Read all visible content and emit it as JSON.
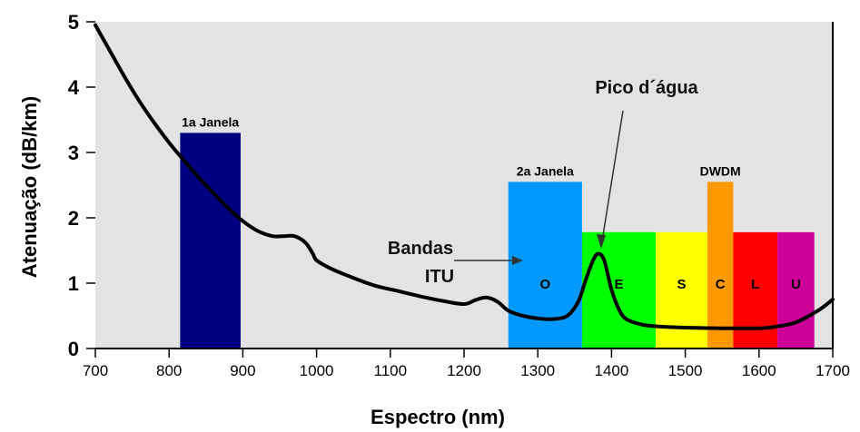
{
  "chart_data": {
    "type": "line",
    "xlabel": "Espectro (nm)",
    "ylabel": "Atenuação (dB/km)",
    "xlim": [
      700,
      1700
    ],
    "ylim": [
      0,
      5
    ],
    "x_ticks": [
      "700",
      "800",
      "900",
      "1000",
      "1100",
      "1200",
      "1300",
      "1400",
      "1500",
      "1600",
      "1700"
    ],
    "y_ticks": [
      "0",
      "1",
      "2",
      "3",
      "4",
      "5"
    ],
    "grid": false,
    "series": [
      {
        "color": "#000000",
        "x": [
          700,
          720,
          740,
          760,
          780,
          800,
          820,
          840,
          860,
          880,
          900,
          920,
          940,
          955,
          970,
          985,
          995,
          1000,
          1020,
          1050,
          1080,
          1110,
          1140,
          1170,
          1200,
          1215,
          1230,
          1245,
          1260,
          1280,
          1300,
          1320,
          1340,
          1355,
          1365,
          1375,
          1382,
          1390,
          1400,
          1410,
          1420,
          1440,
          1460,
          1500,
          1550,
          1600,
          1620,
          1650,
          1680,
          1700
        ],
        "y": [
          4.95,
          4.55,
          4.15,
          3.78,
          3.45,
          3.15,
          2.88,
          2.62,
          2.38,
          2.15,
          1.95,
          1.8,
          1.72,
          1.72,
          1.72,
          1.62,
          1.45,
          1.35,
          1.22,
          1.08,
          0.96,
          0.88,
          0.8,
          0.73,
          0.68,
          0.74,
          0.78,
          0.72,
          0.58,
          0.5,
          0.46,
          0.45,
          0.5,
          0.72,
          1.05,
          1.35,
          1.45,
          1.35,
          0.9,
          0.6,
          0.45,
          0.37,
          0.34,
          0.32,
          0.31,
          0.31,
          0.33,
          0.4,
          0.58,
          0.75
        ]
      }
    ],
    "bands": [
      {
        "title": "1a Janela",
        "label": "",
        "x0": 815,
        "x1": 897,
        "top": 3.3,
        "color": "#000080"
      },
      {
        "title": "2a Janela",
        "label": "O",
        "x0": 1260,
        "x1": 1360,
        "top": 2.55,
        "color": "#0099ff"
      },
      {
        "title": "",
        "label": "E",
        "x0": 1360,
        "x1": 1460,
        "top": 1.78,
        "color": "#00ff00"
      },
      {
        "title": "",
        "label": "S",
        "x0": 1460,
        "x1": 1530,
        "top": 1.78,
        "color": "#ffff00"
      },
      {
        "title": "DWDM",
        "label": "C",
        "x0": 1530,
        "x1": 1565,
        "top": 2.55,
        "color": "#ff9900"
      },
      {
        "title": "",
        "label": "L",
        "x0": 1565,
        "x1": 1625,
        "top": 1.78,
        "color": "#ff0000"
      },
      {
        "title": "",
        "label": "U",
        "x0": 1625,
        "x1": 1675,
        "top": 1.78,
        "color": "#cc0099"
      }
    ],
    "annotations": [
      {
        "text": "Pico d´água"
      },
      {
        "text": "Bandas"
      },
      {
        "text": "ITU"
      }
    ]
  }
}
